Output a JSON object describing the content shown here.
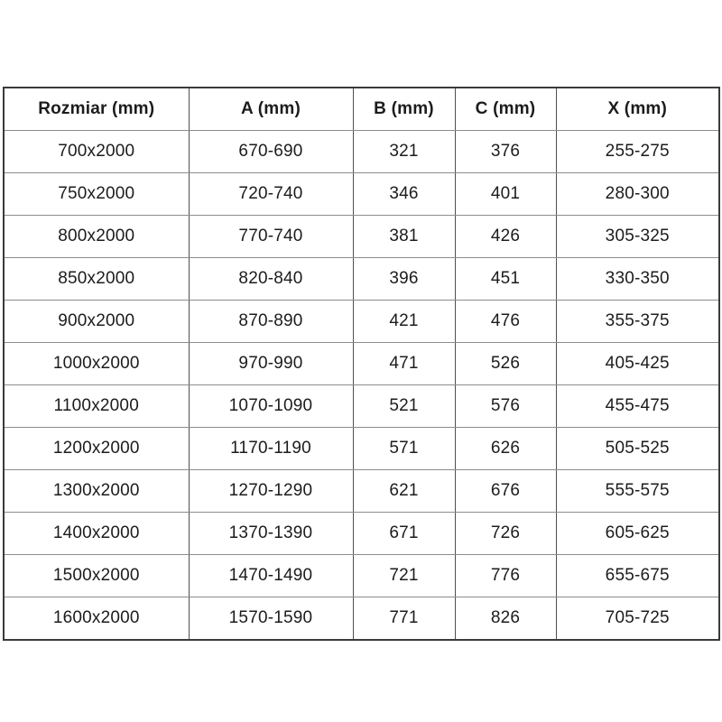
{
  "table": {
    "columns": [
      "Rozmiar (mm)",
      "A (mm)",
      "B (mm)",
      "C (mm)",
      "X (mm)"
    ],
    "rows": [
      [
        "700x2000",
        "670-690",
        "321",
        "376",
        "255-275"
      ],
      [
        "750x2000",
        "720-740",
        "346",
        "401",
        "280-300"
      ],
      [
        "800x2000",
        "770-740",
        "381",
        "426",
        "305-325"
      ],
      [
        "850x2000",
        "820-840",
        "396",
        "451",
        "330-350"
      ],
      [
        "900x2000",
        "870-890",
        "421",
        "476",
        "355-375"
      ],
      [
        "1000x2000",
        "970-990",
        "471",
        "526",
        "405-425"
      ],
      [
        "1100x2000",
        "1070-1090",
        "521",
        "576",
        "455-475"
      ],
      [
        "1200x2000",
        "1170-1190",
        "571",
        "626",
        "505-525"
      ],
      [
        "1300x2000",
        "1270-1290",
        "621",
        "676",
        "555-575"
      ],
      [
        "1400x2000",
        "1370-1390",
        "671",
        "726",
        "605-625"
      ],
      [
        "1500x2000",
        "1470-1490",
        "721",
        "776",
        "655-675"
      ],
      [
        "1600x2000",
        "1570-1590",
        "771",
        "826",
        "705-725"
      ]
    ]
  },
  "colors": {
    "background": "#ffffff",
    "text": "#1c1c1c",
    "border_outer": "#3a3a3a",
    "border_vertical": "#4f4f4f",
    "border_horizontal": "#8c8c8c"
  }
}
